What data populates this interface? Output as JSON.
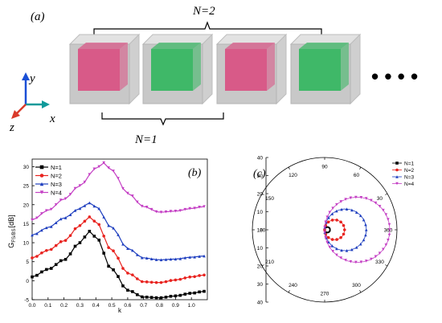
{
  "panel_a": {
    "label": "(a)",
    "n2_label": "N=2",
    "n1_label": "N=1",
    "axis_y": "y",
    "axis_x": "x",
    "axis_z": "z",
    "cubes": [
      {
        "fill": "#d85a88"
      },
      {
        "fill": "#3fb868"
      },
      {
        "fill": "#d85a88"
      },
      {
        "fill": "#3fb868"
      }
    ],
    "colors": {
      "shell": "#c8c8c8",
      "red": "#d85a88",
      "green": "#3fb868",
      "axis_y": "#1a4fd6",
      "axis_x": "#0f9a9a",
      "axis_z": "#d93a2a"
    }
  },
  "chart_data": [
    {
      "type": "line",
      "panel_label": "(b)",
      "xlabel": "k",
      "ylabel": "G",
      "ylabel_sub": "FS/BS",
      "ylabel_unit": "[dB]",
      "xlim": [
        0.0,
        1.1
      ],
      "ylim": [
        -5,
        32
      ],
      "xticks": [
        "0.0",
        "0.1",
        "0.2",
        "0.3",
        "0.4",
        "0.5",
        "0.6",
        "0.7",
        "0.8",
        "0.9",
        "1.0"
      ],
      "yticks": [
        "-5",
        "0",
        "5",
        "10",
        "15",
        "20",
        "25",
        "30"
      ],
      "legend_position": "top-left",
      "series": [
        {
          "name": "N=1",
          "color": "#000000",
          "marker": "square",
          "x": [
            0.0,
            0.1,
            0.2,
            0.3,
            0.36,
            0.4,
            0.5,
            0.6,
            0.7,
            0.8,
            0.9,
            1.0,
            1.08
          ],
          "y": [
            1,
            3,
            5.5,
            10,
            13,
            11.5,
            3,
            -2.5,
            -4.3,
            -4.5,
            -4.0,
            -3.3,
            -2.8
          ]
        },
        {
          "name": "N=2",
          "color": "#e8231f",
          "marker": "circle",
          "x": [
            0.0,
            0.1,
            0.2,
            0.3,
            0.36,
            0.4,
            0.5,
            0.6,
            0.7,
            0.8,
            0.9,
            1.0,
            1.08
          ],
          "y": [
            6,
            8,
            10.5,
            14.5,
            16.8,
            15.5,
            8,
            2,
            -0.3,
            -0.5,
            0.2,
            1.0,
            1.5
          ]
        },
        {
          "name": "N=3",
          "color": "#1f3fbf",
          "marker": "triangle-up",
          "x": [
            0.0,
            0.1,
            0.2,
            0.3,
            0.36,
            0.4,
            0.5,
            0.6,
            0.7,
            0.8,
            0.9,
            1.0,
            1.08
          ],
          "y": [
            12,
            14,
            16.5,
            19,
            20.5,
            19.5,
            14,
            8.5,
            6,
            5.5,
            5.7,
            6.2,
            6.5
          ]
        },
        {
          "name": "N=4",
          "color": "#c43fc4",
          "marker": "triangle-down",
          "x": [
            0.0,
            0.1,
            0.2,
            0.3,
            0.4,
            0.45,
            0.5,
            0.6,
            0.7,
            0.8,
            0.9,
            1.0,
            1.08
          ],
          "y": [
            16,
            18.5,
            21.5,
            25,
            29.5,
            31,
            29,
            23,
            19.5,
            18,
            18.3,
            19,
            19.5
          ]
        }
      ]
    },
    {
      "type": "polar",
      "panel_label": "(c)",
      "rlim": [
        0,
        40
      ],
      "radial_ticks": [
        "40",
        "30",
        "20",
        "10",
        "0",
        "10",
        "20",
        "30",
        "40"
      ],
      "angle_ticks": [
        {
          "deg": 90,
          "label": "90"
        },
        {
          "deg": 60,
          "label": "60"
        },
        {
          "deg": 30,
          "label": "30"
        },
        {
          "deg": 0,
          "label": "360"
        },
        {
          "deg": 330,
          "label": "330"
        },
        {
          "deg": 300,
          "label": "300"
        },
        {
          "deg": 270,
          "label": "270"
        },
        {
          "deg": 240,
          "label": "240"
        },
        {
          "deg": 210,
          "label": "210"
        },
        {
          "deg": 180,
          "label": "180"
        },
        {
          "deg": 150,
          "label": "150"
        },
        {
          "deg": 120,
          "label": "120"
        }
      ],
      "legend_position": "top-right",
      "series": [
        {
          "name": "N=1",
          "color": "#000000",
          "marker": "square",
          "max_r": 3
        },
        {
          "name": "N=2",
          "color": "#e8231f",
          "marker": "circle",
          "max_r": 11
        },
        {
          "name": "N=3",
          "color": "#1f3fbf",
          "marker": "triangle-up",
          "max_r": 23
        },
        {
          "name": "N=4",
          "color": "#c43fc4",
          "marker": "triangle-down",
          "max_r": 36
        }
      ]
    }
  ],
  "ellipsis_label": "• • • •"
}
